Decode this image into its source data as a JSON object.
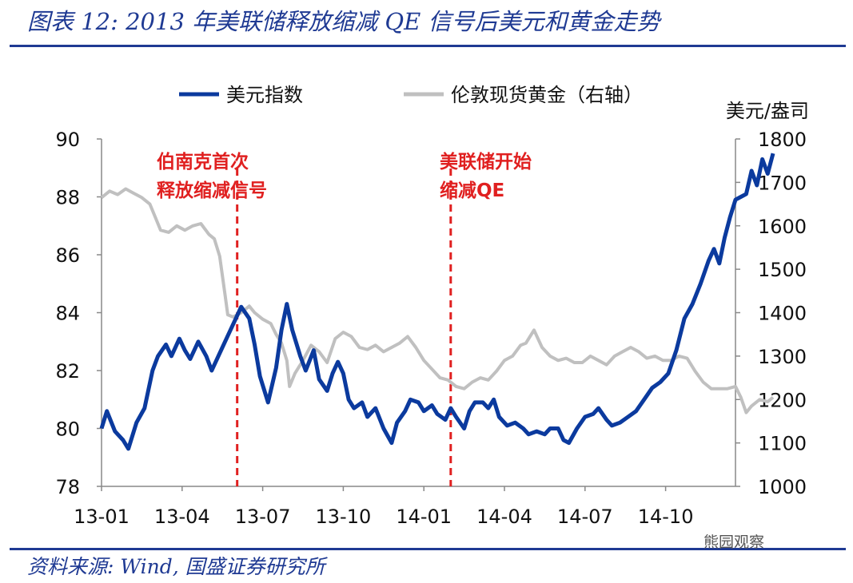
{
  "title": "图表 12:  2013 年美联储释放缩减 QE 信号后美元和黄金走势",
  "source": "资料来源:  Wind,  国盛证券研究所",
  "watermark": "熊园观察",
  "chart_data": {
    "type": "line",
    "x_tick_labels": [
      "13-01",
      "13-04",
      "13-07",
      "13-10",
      "14-01",
      "14-04",
      "14-07",
      "14-10"
    ],
    "x_range": [
      0,
      24
    ],
    "y_left": {
      "range": [
        78,
        90
      ],
      "ticks": [
        78,
        80,
        82,
        84,
        86,
        88,
        90
      ]
    },
    "y_right": {
      "range": [
        1000,
        1800
      ],
      "ticks": [
        1000,
        1100,
        1200,
        1300,
        1400,
        1500,
        1600,
        1700,
        1800
      ],
      "unit": "美元/盎司"
    },
    "legend_position": "top",
    "grid": false,
    "series": [
      {
        "name": "美元指数",
        "axis": "left",
        "color": "#0b3a9e",
        "points": [
          [
            0,
            80.0
          ],
          [
            0.2,
            80.6
          ],
          [
            0.5,
            79.9
          ],
          [
            0.8,
            79.6
          ],
          [
            1.0,
            79.3
          ],
          [
            1.3,
            80.2
          ],
          [
            1.6,
            80.7
          ],
          [
            1.9,
            82.0
          ],
          [
            2.1,
            82.5
          ],
          [
            2.4,
            82.9
          ],
          [
            2.6,
            82.5
          ],
          [
            2.9,
            83.1
          ],
          [
            3.1,
            82.7
          ],
          [
            3.3,
            82.4
          ],
          [
            3.6,
            83.0
          ],
          [
            3.9,
            82.5
          ],
          [
            4.1,
            82.0
          ],
          [
            4.4,
            82.6
          ],
          [
            4.7,
            83.2
          ],
          [
            5.0,
            83.8
          ],
          [
            5.2,
            84.2
          ],
          [
            5.5,
            83.8
          ],
          [
            5.7,
            82.9
          ],
          [
            5.9,
            81.8
          ],
          [
            6.2,
            80.9
          ],
          [
            6.5,
            82.1
          ],
          [
            6.7,
            83.4
          ],
          [
            6.9,
            84.3
          ],
          [
            7.1,
            83.4
          ],
          [
            7.4,
            82.5
          ],
          [
            7.6,
            82.0
          ],
          [
            7.9,
            82.7
          ],
          [
            8.1,
            81.7
          ],
          [
            8.4,
            81.3
          ],
          [
            8.6,
            81.9
          ],
          [
            8.8,
            82.3
          ],
          [
            9.0,
            81.9
          ],
          [
            9.2,
            81.0
          ],
          [
            9.4,
            80.7
          ],
          [
            9.7,
            80.9
          ],
          [
            9.9,
            80.4
          ],
          [
            10.2,
            80.7
          ],
          [
            10.5,
            80.0
          ],
          [
            10.8,
            79.5
          ],
          [
            11.0,
            80.2
          ],
          [
            11.3,
            80.6
          ],
          [
            11.5,
            81.0
          ],
          [
            11.8,
            80.9
          ],
          [
            12.0,
            80.6
          ],
          [
            12.3,
            80.8
          ],
          [
            12.5,
            80.5
          ],
          [
            12.8,
            80.3
          ],
          [
            13.0,
            80.7
          ],
          [
            13.2,
            80.4
          ],
          [
            13.5,
            80.0
          ],
          [
            13.7,
            80.6
          ],
          [
            13.9,
            80.9
          ],
          [
            14.2,
            80.9
          ],
          [
            14.4,
            80.7
          ],
          [
            14.6,
            81.0
          ],
          [
            14.8,
            80.4
          ],
          [
            15.1,
            80.1
          ],
          [
            15.4,
            80.2
          ],
          [
            15.7,
            80.0
          ],
          [
            15.9,
            79.8
          ],
          [
            16.2,
            79.9
          ],
          [
            16.5,
            79.8
          ],
          [
            16.7,
            80.0
          ],
          [
            17.0,
            80.0
          ],
          [
            17.2,
            79.6
          ],
          [
            17.4,
            79.5
          ],
          [
            17.7,
            80.0
          ],
          [
            18.0,
            80.4
          ],
          [
            18.3,
            80.5
          ],
          [
            18.5,
            80.7
          ],
          [
            18.8,
            80.3
          ],
          [
            19.0,
            80.1
          ],
          [
            19.3,
            80.2
          ],
          [
            19.6,
            80.4
          ],
          [
            19.9,
            80.6
          ],
          [
            20.2,
            81.0
          ],
          [
            20.5,
            81.4
          ],
          [
            20.8,
            81.6
          ],
          [
            21.1,
            81.9
          ],
          [
            21.4,
            82.7
          ],
          [
            21.7,
            83.8
          ],
          [
            22.0,
            84.3
          ],
          [
            22.3,
            85.0
          ],
          [
            22.6,
            85.8
          ],
          [
            22.8,
            86.2
          ],
          [
            23.0,
            85.7
          ],
          [
            23.2,
            86.6
          ],
          [
            23.4,
            87.3
          ],
          [
            23.6,
            87.9
          ],
          [
            23.8,
            88.0
          ],
          [
            24.0,
            88.1
          ],
          [
            24.2,
            88.9
          ],
          [
            24.4,
            88.4
          ],
          [
            24.6,
            89.3
          ],
          [
            24.8,
            88.8
          ],
          [
            25.0,
            89.5
          ]
        ]
      },
      {
        "name": "伦敦现货黄金（右轴）",
        "axis": "right",
        "color": "#c0c0c0",
        "points": [
          [
            0,
            1665
          ],
          [
            0.3,
            1680
          ],
          [
            0.6,
            1672
          ],
          [
            0.9,
            1685
          ],
          [
            1.2,
            1675
          ],
          [
            1.5,
            1665
          ],
          [
            1.8,
            1650
          ],
          [
            2.0,
            1620
          ],
          [
            2.2,
            1590
          ],
          [
            2.5,
            1585
          ],
          [
            2.8,
            1600
          ],
          [
            3.1,
            1590
          ],
          [
            3.4,
            1600
          ],
          [
            3.7,
            1605
          ],
          [
            4.0,
            1580
          ],
          [
            4.2,
            1570
          ],
          [
            4.4,
            1530
          ],
          [
            4.6,
            1440
          ],
          [
            4.7,
            1395
          ],
          [
            4.9,
            1390
          ],
          [
            5.2,
            1400
          ],
          [
            5.5,
            1415
          ],
          [
            5.7,
            1400
          ],
          [
            6.0,
            1385
          ],
          [
            6.3,
            1375
          ],
          [
            6.5,
            1350
          ],
          [
            6.7,
            1330
          ],
          [
            6.9,
            1290
          ],
          [
            7.0,
            1230
          ],
          [
            7.2,
            1260
          ],
          [
            7.5,
            1290
          ],
          [
            7.8,
            1325
          ],
          [
            8.1,
            1310
          ],
          [
            8.4,
            1285
          ],
          [
            8.7,
            1340
          ],
          [
            9.0,
            1355
          ],
          [
            9.3,
            1345
          ],
          [
            9.6,
            1320
          ],
          [
            9.9,
            1315
          ],
          [
            10.2,
            1325
          ],
          [
            10.5,
            1310
          ],
          [
            10.8,
            1320
          ],
          [
            11.1,
            1330
          ],
          [
            11.4,
            1345
          ],
          [
            11.7,
            1320
          ],
          [
            12.0,
            1290
          ],
          [
            12.3,
            1270
          ],
          [
            12.6,
            1250
          ],
          [
            12.9,
            1245
          ],
          [
            13.2,
            1230
          ],
          [
            13.5,
            1225
          ],
          [
            13.8,
            1240
          ],
          [
            14.1,
            1250
          ],
          [
            14.4,
            1245
          ],
          [
            14.7,
            1265
          ],
          [
            15.0,
            1290
          ],
          [
            15.3,
            1300
          ],
          [
            15.6,
            1325
          ],
          [
            15.8,
            1330
          ],
          [
            16.1,
            1360
          ],
          [
            16.4,
            1320
          ],
          [
            16.7,
            1300
          ],
          [
            17.0,
            1290
          ],
          [
            17.3,
            1295
          ],
          [
            17.6,
            1285
          ],
          [
            17.9,
            1285
          ],
          [
            18.2,
            1300
          ],
          [
            18.5,
            1290
          ],
          [
            18.8,
            1280
          ],
          [
            19.1,
            1300
          ],
          [
            19.4,
            1310
          ],
          [
            19.7,
            1320
          ],
          [
            20.0,
            1310
          ],
          [
            20.3,
            1295
          ],
          [
            20.6,
            1300
          ],
          [
            20.9,
            1290
          ],
          [
            21.2,
            1290
          ],
          [
            21.5,
            1300
          ],
          [
            21.8,
            1295
          ],
          [
            22.1,
            1265
          ],
          [
            22.4,
            1240
          ],
          [
            22.7,
            1225
          ],
          [
            23.0,
            1225
          ],
          [
            23.3,
            1225
          ],
          [
            23.6,
            1230
          ],
          [
            23.8,
            1205
          ],
          [
            24.0,
            1170
          ],
          [
            24.2,
            1185
          ],
          [
            24.5,
            1200
          ],
          [
            24.8,
            1195
          ],
          [
            25.0,
            1205
          ]
        ]
      }
    ],
    "annotations": [
      {
        "x": 5.05,
        "lines": [
          "伯南克首次",
          "释放缩减信号"
        ]
      },
      {
        "x": 13.0,
        "lines": [
          "美联储开始",
          "缩减QE"
        ]
      }
    ]
  }
}
